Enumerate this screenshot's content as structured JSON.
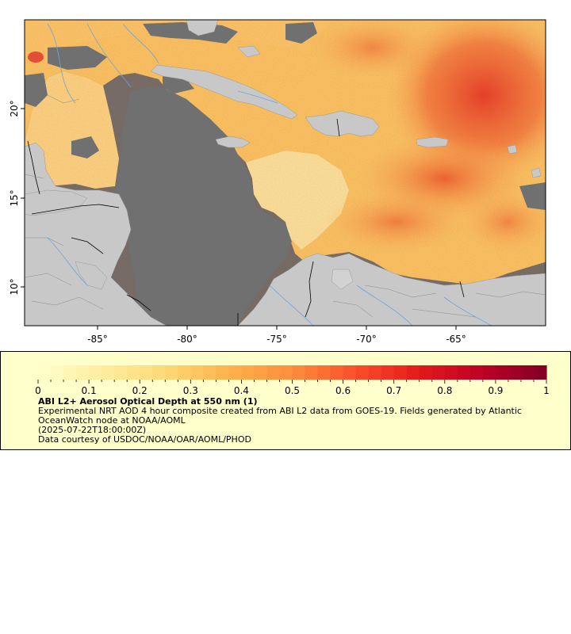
{
  "map": {
    "lon_ticks": [
      "-85°",
      "-80°",
      "-75°",
      "-70°",
      "-65°"
    ],
    "lat_ticks": [
      "20°",
      "15°",
      "10°"
    ],
    "colors": {
      "ocean_nodata": "#707070",
      "land": "#c8c8c8",
      "rivers": "#6fa3d8",
      "borders": "#000000"
    }
  },
  "legend": {
    "colorbar_ticks": [
      "0",
      "0.1",
      "0.2",
      "0.3",
      "0.4",
      "0.5",
      "0.6",
      "0.7",
      "0.8",
      "0.9",
      "1"
    ],
    "colorbar_range": [
      0,
      1
    ],
    "colormap": [
      "#ffffcc",
      "#ffeda0",
      "#fed976",
      "#feb24c",
      "#fd8d3c",
      "#fc4e2a",
      "#e31a1c",
      "#bd0026",
      "#800026"
    ],
    "title": "ABI L2+ Aerosol Optical Depth at 550 nm (1)",
    "description": "Experimental NRT AOD 4 hour composite created from ABI L2 data from GOES-19. Fields generated by Atlantic OceanWatch node at NOAA/AOML",
    "time": "(2025-07-22T18:00:00Z)",
    "credit": "Data courtesy of USDOC/NOAA/OAR/AOML/PHOD"
  }
}
